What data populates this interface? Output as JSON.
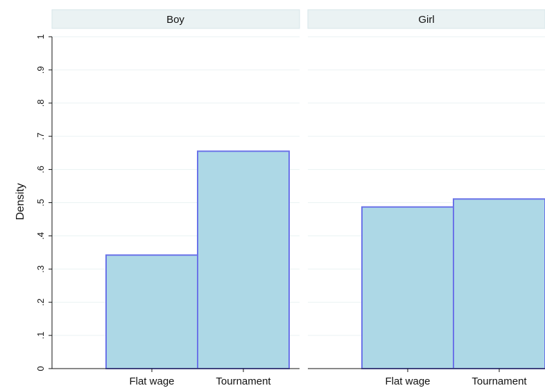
{
  "chart_data": {
    "type": "bar",
    "ylabel": "Density",
    "xlabel": "",
    "ylim": [
      0,
      1
    ],
    "y_ticks": [
      0,
      0.1,
      0.2,
      0.3,
      0.4,
      0.5,
      0.6,
      0.7,
      0.8,
      0.9,
      1
    ],
    "y_tick_labels": [
      "0",
      ".1",
      ".2",
      ".3",
      ".4",
      ".5",
      ".6",
      ".7",
      ".8",
      ".9",
      "1"
    ],
    "categories": [
      "Flat wage",
      "Tournament"
    ],
    "grid": true,
    "panels": [
      {
        "label": "Boy",
        "values": [
          0.342,
          0.655
        ]
      },
      {
        "label": "Girl",
        "values": [
          0.487,
          0.511
        ]
      }
    ],
    "colors": {
      "bar_fill": "#add8e6",
      "bar_stroke": "#6a72e8",
      "strip_fill": "#eaf2f3",
      "grid": "#eaf2f3"
    }
  }
}
